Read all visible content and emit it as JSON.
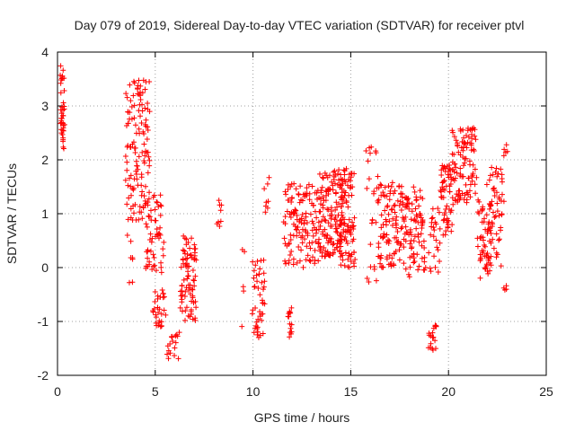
{
  "chart_data": {
    "type": "scatter",
    "title": "Day 079 of 2019, Sidereal Day-to-day VTEC variation (SDTVAR) for receiver ptvl",
    "xlabel": "GPS time / hours",
    "ylabel": "SDTVAR / TECUs",
    "xlim": [
      0,
      25
    ],
    "ylim": [
      -2,
      4
    ],
    "xticks": [
      0,
      5,
      10,
      15,
      20,
      25
    ],
    "yticks": [
      -2,
      -1,
      0,
      1,
      2,
      3,
      4
    ],
    "grid": true,
    "marker": "+",
    "color": "#ff0000",
    "clusters": [
      {
        "x": [
          0.15,
          0.35
        ],
        "y": [
          2.2,
          3.75
        ],
        "n": 40
      },
      {
        "x": [
          3.5,
          3.9
        ],
        "y": [
          -0.3,
          3.4
        ],
        "n": 45
      },
      {
        "x": [
          3.9,
          4.7
        ],
        "y": [
          0.8,
          3.5
        ],
        "n": 90
      },
      {
        "x": [
          4.5,
          5.4
        ],
        "y": [
          -0.1,
          1.4
        ],
        "n": 55
      },
      {
        "x": [
          4.9,
          5.5
        ],
        "y": [
          -1.1,
          -0.4
        ],
        "n": 30
      },
      {
        "x": [
          5.6,
          6.2
        ],
        "y": [
          -1.7,
          -1.2
        ],
        "n": 18
      },
      {
        "x": [
          6.3,
          7.1
        ],
        "y": [
          -1.0,
          0.6
        ],
        "n": 80
      },
      {
        "x": [
          8.2,
          8.4
        ],
        "y": [
          0.6,
          1.55
        ],
        "n": 8
      },
      {
        "x": [
          9.4,
          9.6
        ],
        "y": [
          -1.4,
          0.45
        ],
        "n": 5
      },
      {
        "x": [
          10.0,
          10.6
        ],
        "y": [
          -1.3,
          0.3
        ],
        "n": 45
      },
      {
        "x": [
          10.6,
          10.8
        ],
        "y": [
          1.0,
          1.7
        ],
        "n": 8
      },
      {
        "x": [
          11.8,
          12.0
        ],
        "y": [
          -1.3,
          -0.7
        ],
        "n": 14
      },
      {
        "x": [
          11.6,
          13.4
        ],
        "y": [
          0.0,
          1.6
        ],
        "n": 130
      },
      {
        "x": [
          13.4,
          14.6
        ],
        "y": [
          0.2,
          1.8
        ],
        "n": 130
      },
      {
        "x": [
          14.4,
          15.2
        ],
        "y": [
          0.0,
          2.0
        ],
        "n": 90
      },
      {
        "x": [
          15.8,
          16.4
        ],
        "y": [
          -0.3,
          2.25
        ],
        "n": 25
      },
      {
        "x": [
          16.4,
          17.8
        ],
        "y": [
          0.0,
          1.6
        ],
        "n": 110
      },
      {
        "x": [
          17.8,
          18.8
        ],
        "y": [
          -0.2,
          1.5
        ],
        "n": 80
      },
      {
        "x": [
          19.0,
          19.4
        ],
        "y": [
          -1.55,
          -1.0
        ],
        "n": 18
      },
      {
        "x": [
          19.0,
          19.6
        ],
        "y": [
          -0.1,
          1.1
        ],
        "n": 25
      },
      {
        "x": [
          19.6,
          20.2
        ],
        "y": [
          0.6,
          1.9
        ],
        "n": 60
      },
      {
        "x": [
          20.2,
          21.4
        ],
        "y": [
          1.2,
          2.6
        ],
        "n": 100
      },
      {
        "x": [
          21.5,
          22.2
        ],
        "y": [
          -0.2,
          1.3
        ],
        "n": 55
      },
      {
        "x": [
          22.0,
          22.8
        ],
        "y": [
          0.0,
          1.9
        ],
        "n": 55
      },
      {
        "x": [
          22.8,
          23.0
        ],
        "y": [
          -0.55,
          -0.25
        ],
        "n": 4
      },
      {
        "x": [
          22.8,
          23.0
        ],
        "y": [
          2.05,
          2.35
        ],
        "n": 5
      }
    ]
  }
}
